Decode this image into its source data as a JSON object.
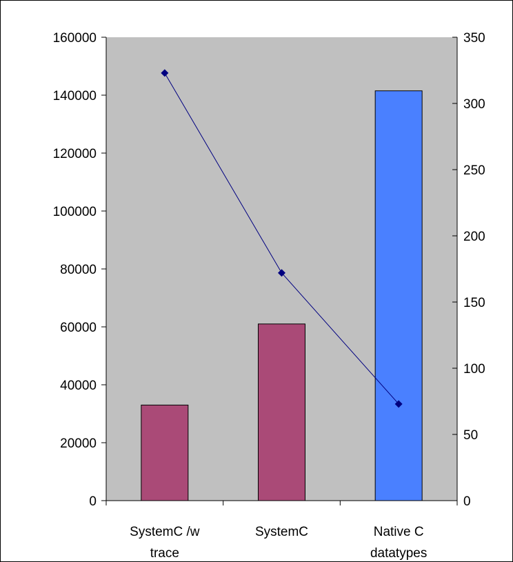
{
  "chart_data": {
    "type": "bar",
    "categories": [
      [
        "SystemC /w",
        "trace"
      ],
      [
        "SystemC"
      ],
      [
        "Native C",
        "datatypes"
      ]
    ],
    "series": [
      {
        "type": "bar",
        "axis": "left",
        "values": [
          33000,
          61000,
          141500
        ],
        "colors": [
          "#aa4a77",
          "#aa4a77",
          "#4a80ff"
        ]
      },
      {
        "type": "line",
        "axis": "right",
        "values": [
          323,
          172,
          73
        ],
        "color": "#000080"
      }
    ],
    "yleft": {
      "lim": [
        0,
        160000
      ],
      "ticks": [
        0,
        20000,
        40000,
        60000,
        80000,
        100000,
        120000,
        140000,
        160000
      ],
      "tick_labels": [
        "0",
        "20000",
        "40000",
        "60000",
        "80000",
        "100000",
        "120000",
        "140000",
        "160000"
      ]
    },
    "yright": {
      "lim": [
        0,
        350
      ],
      "ticks": [
        0,
        50,
        100,
        150,
        200,
        250,
        300,
        350
      ],
      "tick_labels": [
        "0",
        "50",
        "100",
        "150",
        "200",
        "250",
        "300",
        "350"
      ]
    },
    "plot_background": "#c0c0c0",
    "grid": false,
    "legend": "none"
  }
}
